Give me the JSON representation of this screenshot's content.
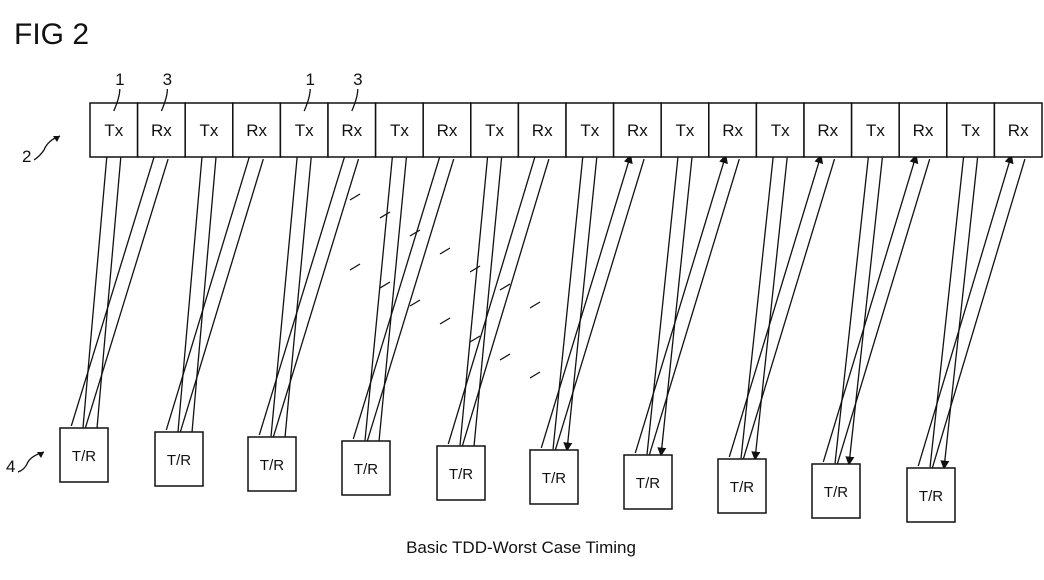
{
  "figure": {
    "title": "FIG 2",
    "caption": "Basic TDD-Worst Case Timing"
  },
  "frame": {
    "reference": "2",
    "slots": [
      "Tx",
      "Rx",
      "Tx",
      "Rx",
      "Tx",
      "Rx",
      "Tx",
      "Rx",
      "Tx",
      "Rx",
      "Tx",
      "Rx",
      "Tx",
      "Rx",
      "Tx",
      "Rx",
      "Tx",
      "Rx",
      "Tx",
      "Rx"
    ]
  },
  "callouts": [
    "1",
    "3",
    "1",
    "3"
  ],
  "stations": {
    "reference": "4",
    "labels": [
      "T/R",
      "T/R",
      "T/R",
      "T/R",
      "T/R",
      "T/R",
      "T/R",
      "T/R",
      "T/R",
      "T/R"
    ]
  }
}
